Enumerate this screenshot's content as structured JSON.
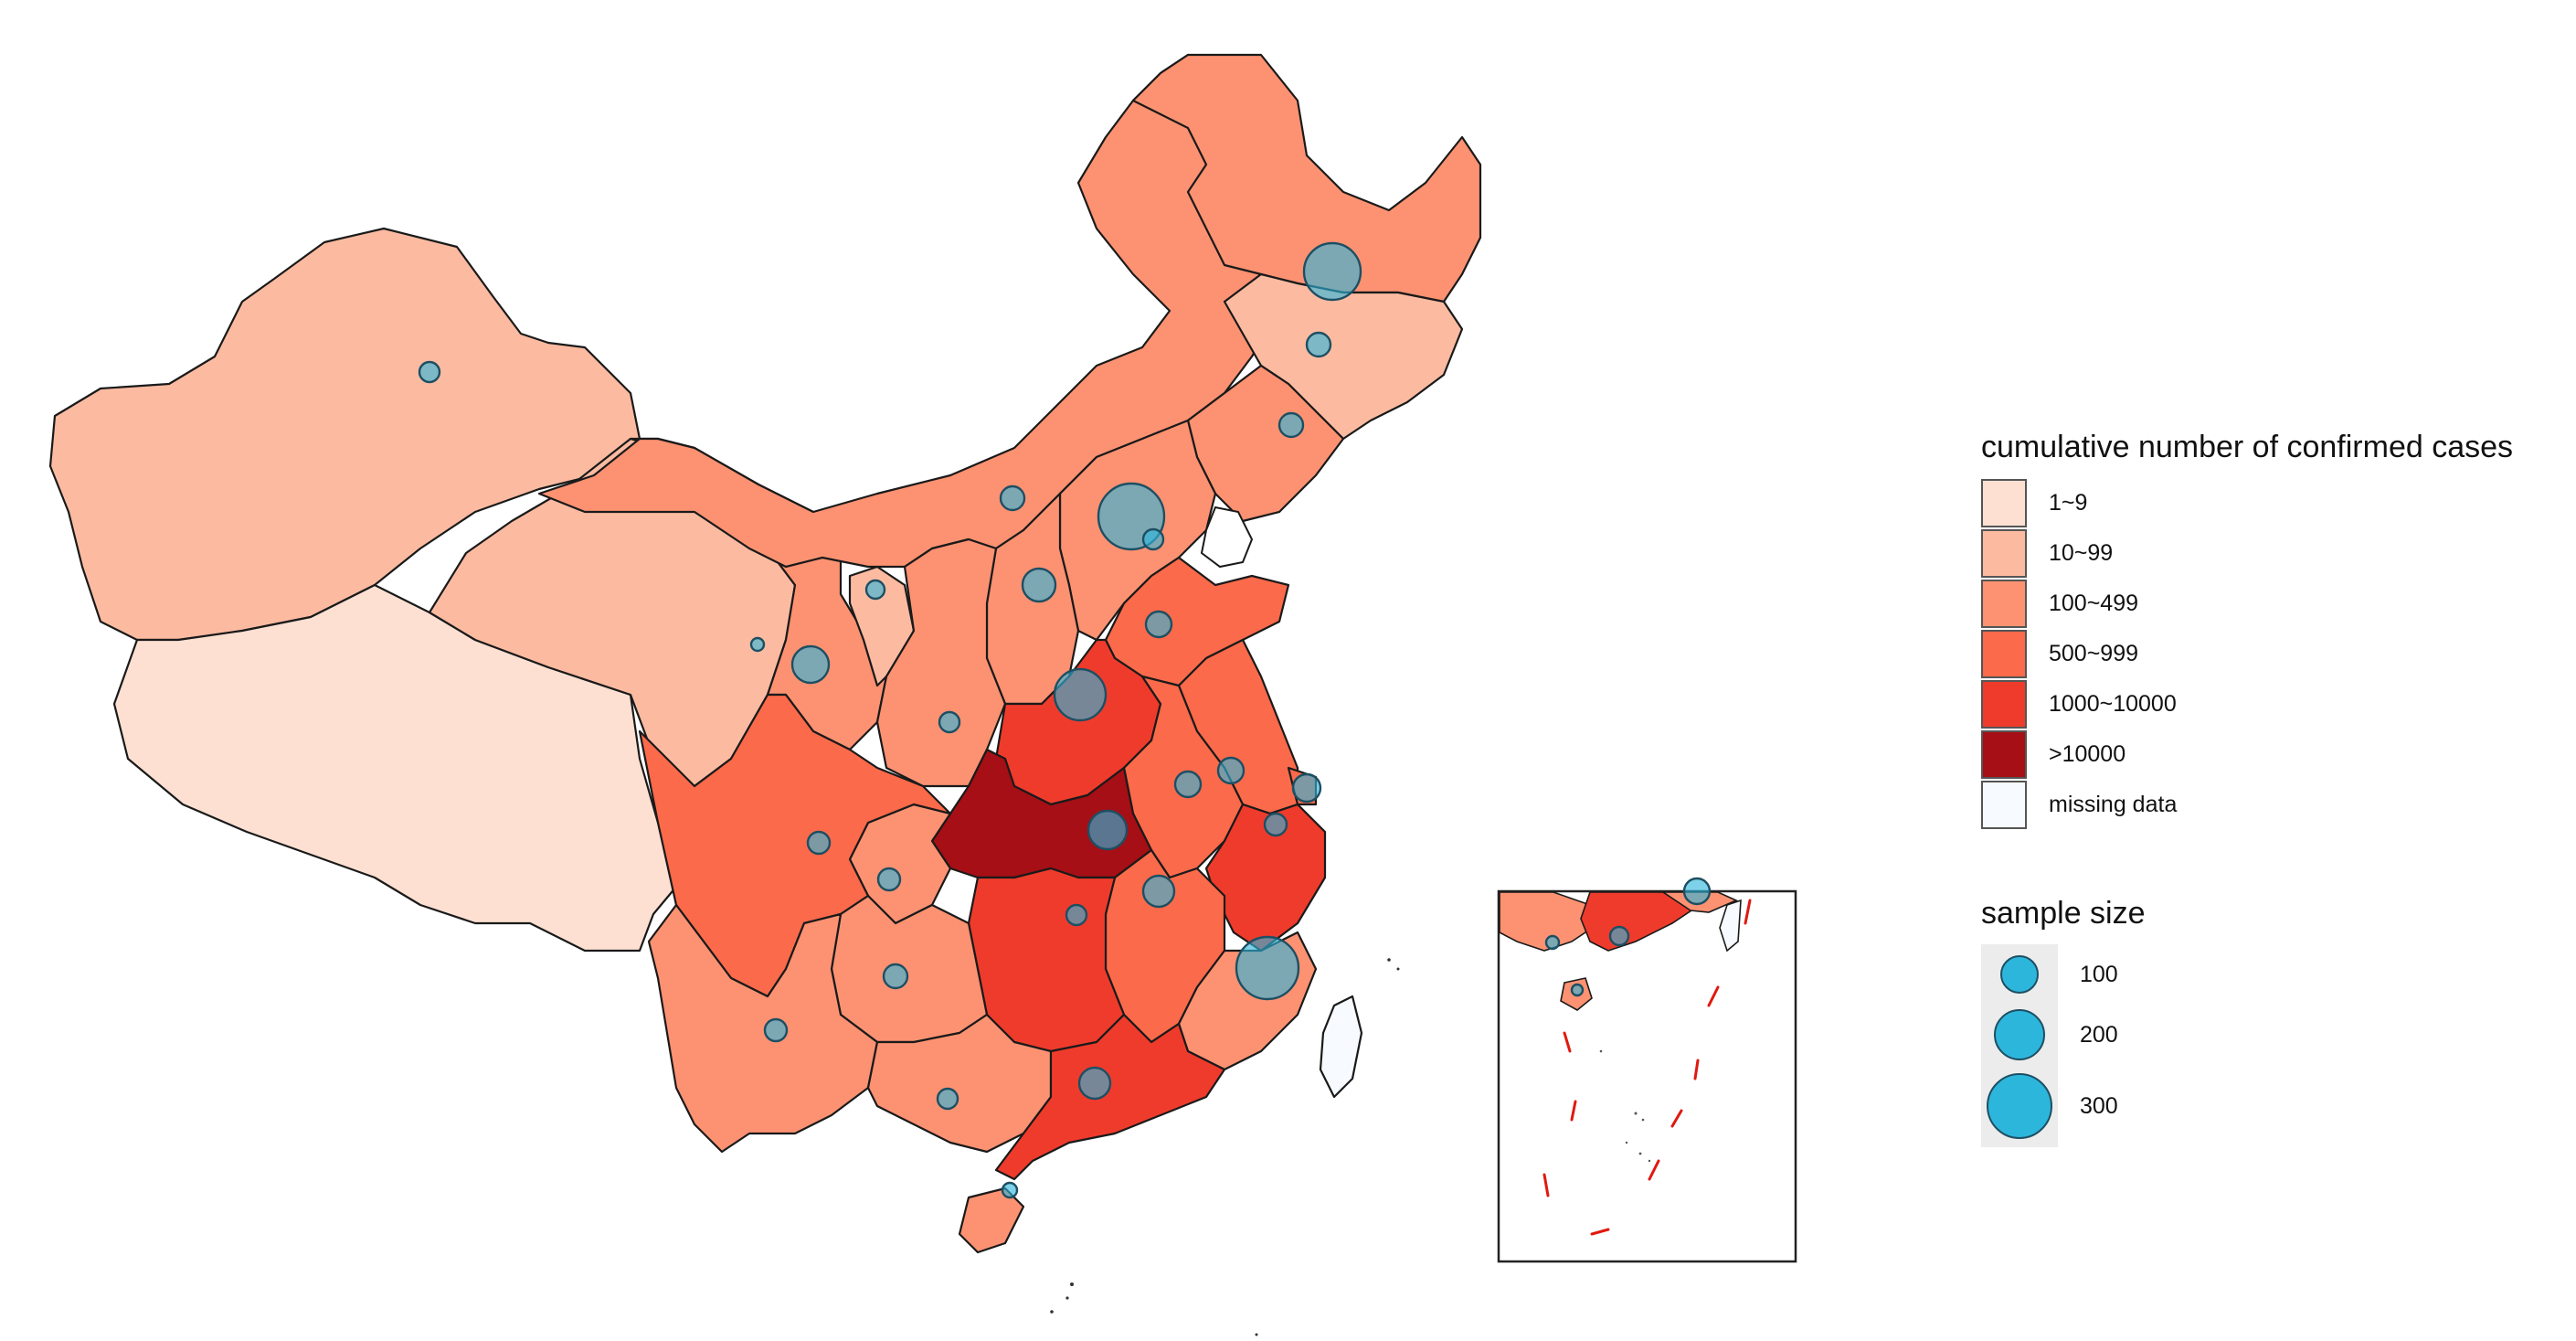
{
  "map": {
    "legend_cases": {
      "title": "cumulative number of confirmed cases",
      "items": [
        {
          "label": "1~9",
          "color": "#fde0d2"
        },
        {
          "label": "10~99",
          "color": "#fcbba1"
        },
        {
          "label": "100~499",
          "color": "#fc9272"
        },
        {
          "label": "500~999",
          "color": "#fb6a4a"
        },
        {
          "label": "1000~10000",
          "color": "#ef3b2c"
        },
        {
          "label": ">10000",
          "color": "#a50f15"
        },
        {
          "label": "missing data",
          "color": "#f7fbff"
        }
      ]
    },
    "legend_sample": {
      "title": "sample size",
      "items": [
        {
          "label": "100",
          "value": 100
        },
        {
          "label": "200",
          "value": 200
        },
        {
          "label": "300",
          "value": 300
        }
      ]
    }
  }
}
